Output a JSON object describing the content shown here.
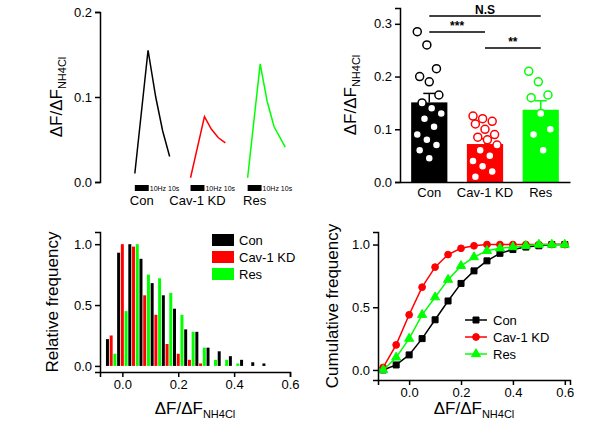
{
  "chart_data": [
    {
      "type": "line",
      "ylabel": "ΔF/ΔF",
      "ylabel_subscript": "NH4Cl",
      "xlim": [
        0,
        140
      ],
      "ylim": [
        0,
        0.2
      ],
      "yticks": [
        {
          "value": 0,
          "label": "0.0"
        },
        {
          "value": 0.1,
          "label": "0.1"
        },
        {
          "value": 0.2,
          "label": "0.2"
        }
      ],
      "tick_labels": "y",
      "series": [
        {
          "name": "Con",
          "color": "#000000",
          "x": [
            25,
            34.5,
            40,
            45,
            50
          ],
          "values": [
            0.01,
            0.155,
            0.1,
            0.06,
            0.03
          ],
          "stimulus": [
            25,
            35
          ],
          "stimulus_label": "10Hz 10s"
        },
        {
          "name": "Cav-1 KD",
          "color": "#ff0000",
          "x": [
            65,
            75,
            80,
            85,
            90
          ],
          "values": [
            0.005,
            0.077,
            0.062,
            0.052,
            0.046
          ],
          "stimulus": [
            65,
            75
          ],
          "stimulus_label": "10Hz 10s"
        },
        {
          "name": "Res",
          "color": "#00ff00",
          "x": [
            106,
            115,
            120,
            125,
            133
          ],
          "values": [
            0.005,
            0.139,
            0.095,
            0.065,
            0.041
          ],
          "stimulus": [
            106,
            116
          ],
          "stimulus_label": "10Hz 10s"
        }
      ]
    },
    {
      "type": "bar",
      "ylabel": "ΔF/ΔF",
      "ylabel_subscript": "NH4Cl",
      "categories": [
        "Con",
        "Cav-1 KD",
        "Res"
      ],
      "values": [
        0.151,
        0.072,
        0.137
      ],
      "errors": [
        0.017,
        0.01,
        0.017
      ],
      "colors": [
        "#000000",
        "#ff0000",
        "#00ff00"
      ],
      "points": [
        [
          0.285,
          0.26,
          0.215,
          0.2,
          0.19,
          0.165,
          0.15,
          0.14,
          0.13,
          0.12,
          0.105,
          0.09,
          0.08,
          0.07,
          0.06,
          0.045
        ],
        [
          0.125,
          0.12,
          0.115,
          0.11,
          0.1,
          0.09,
          0.085,
          0.08,
          0.07,
          0.06,
          0.05,
          0.04,
          0.03,
          0.02,
          0.01
        ],
        [
          0.21,
          0.19,
          0.165,
          0.16,
          0.13,
          0.1,
          0.09,
          0.06
        ]
      ],
      "ylim": [
        0,
        0.33
      ],
      "yticks": [
        {
          "value": 0,
          "label": "0.0"
        },
        {
          "value": 0.1,
          "label": "0.1"
        },
        {
          "value": 0.2,
          "label": "0.2"
        },
        {
          "value": 0.3,
          "label": "0.3"
        }
      ],
      "comparisons": [
        {
          "groups": [
            "Con",
            "Res"
          ],
          "label": "N.S"
        },
        {
          "groups": [
            "Con",
            "Cav-1 KD"
          ],
          "label": "***"
        },
        {
          "groups": [
            "Cav-1 KD",
            "Res"
          ],
          "label": "**"
        }
      ]
    },
    {
      "type": "histogram",
      "xlabel": "ΔF/ΔF",
      "xlabel_subscript": "NH4Cl",
      "ylabel": "Relative frequency",
      "bins": [
        -0.06,
        -0.02,
        0.02,
        0.06,
        0.1,
        0.14,
        0.18,
        0.22,
        0.26,
        0.3,
        0.34,
        0.38,
        0.42,
        0.46,
        0.5,
        0.54
      ],
      "series": [
        {
          "name": "Con",
          "color": "#000000",
          "values": [
            0.22,
            0.93,
            1.0,
            0.88,
            0.68,
            0.58,
            0.47,
            0.3,
            0.28,
            0.15,
            0.12,
            0.08,
            0.05,
            0.03,
            0.02
          ]
        },
        {
          "name": "Cav-1 KD",
          "color": "#ff0000",
          "values": [
            0.25,
            1.0,
            0.98,
            0.58,
            0.42,
            0.18,
            0.1,
            0.05,
            0.02,
            0,
            0,
            0,
            0,
            0,
            0
          ]
        },
        {
          "name": "Res",
          "color": "#00ff00",
          "values": [
            0.1,
            0.45,
            1.0,
            0.75,
            0.72,
            0.6,
            0.42,
            0.28,
            0.15,
            0.05,
            0.05,
            0.02,
            0,
            0,
            0
          ]
        }
      ],
      "xlim": [
        -0.08,
        0.6
      ],
      "ylim": [
        -0.05,
        1.1
      ],
      "xticks": [
        {
          "value": 0,
          "label": "0.0"
        },
        {
          "value": 0.2,
          "label": "0.2"
        },
        {
          "value": 0.4,
          "label": "0.4"
        },
        {
          "value": 0.6,
          "label": "0.6"
        }
      ],
      "yticks": [
        {
          "value": 0,
          "label": "0.0"
        },
        {
          "value": 0.5,
          "label": "0.5"
        },
        {
          "value": 1,
          "label": "1.0"
        }
      ],
      "legend": "upper right"
    },
    {
      "type": "line",
      "xlabel": "ΔF/ΔF",
      "xlabel_subscript": "NH4Cl",
      "ylabel": "Cumulative frequency",
      "x": [
        -0.1,
        -0.05,
        0,
        0.05,
        0.1,
        0.15,
        0.2,
        0.25,
        0.3,
        0.35,
        0.4,
        0.45,
        0.5,
        0.55,
        0.6
      ],
      "series": [
        {
          "name": "Con",
          "color": "#000000",
          "marker": "square",
          "values": [
            0.0,
            0.04,
            0.12,
            0.25,
            0.4,
            0.55,
            0.69,
            0.79,
            0.87,
            0.93,
            0.96,
            0.98,
            0.99,
            1.0,
            1.0
          ]
        },
        {
          "name": "Cav-1 KD",
          "color": "#ff0000",
          "marker": "circle",
          "values": [
            0.02,
            0.2,
            0.44,
            0.66,
            0.82,
            0.92,
            0.97,
            0.99,
            1.0,
            1.0,
            1.0,
            1.0,
            1.0,
            1.0,
            1.0
          ]
        },
        {
          "name": "Res",
          "color": "#00ff00",
          "marker": "triangle",
          "values": [
            0.0,
            0.1,
            0.25,
            0.44,
            0.58,
            0.72,
            0.83,
            0.9,
            0.95,
            0.97,
            0.98,
            0.99,
            1.0,
            1.0,
            1.0
          ]
        }
      ],
      "xlim": [
        -0.12,
        0.62
      ],
      "ylim": [
        -0.08,
        1.1
      ],
      "xticks": [
        {
          "value": 0,
          "label": "0.0"
        },
        {
          "value": 0.2,
          "label": "0.2"
        },
        {
          "value": 0.4,
          "label": "0.4"
        },
        {
          "value": 0.6,
          "label": "0.6"
        }
      ],
      "yticks": [
        {
          "value": 0,
          "label": "0.0"
        },
        {
          "value": 0.5,
          "label": "0.5"
        },
        {
          "value": 1,
          "label": "1.0"
        }
      ],
      "legend": "lower right"
    }
  ]
}
